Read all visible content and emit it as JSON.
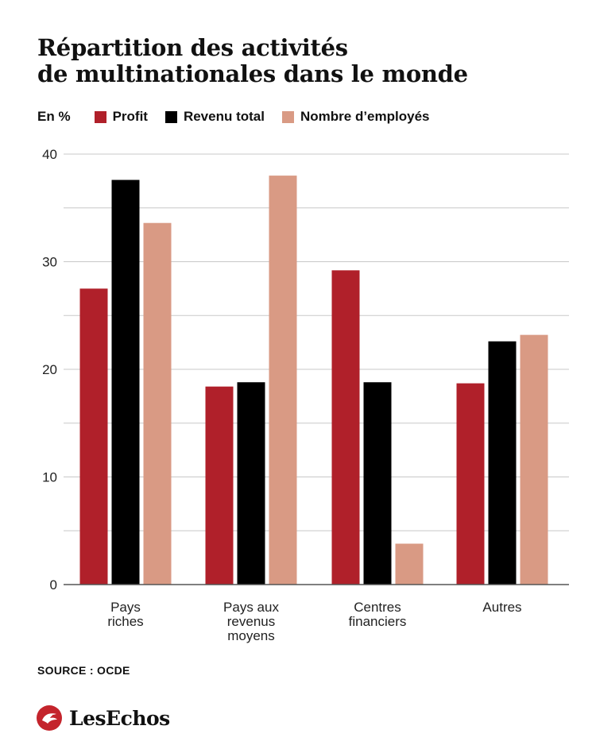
{
  "title_lines": [
    "Répartition des activités",
    "de multinationales dans le monde"
  ],
  "legend": {
    "unit": "En %",
    "items": [
      "Profit",
      "Revenu total",
      "Nombre d’employés"
    ]
  },
  "colors": {
    "Profit": "#b0202a",
    "Revenu total": "#000000",
    "Nombre d’employés": "#d99a84",
    "grid": "#c8c8c8",
    "axis": "#555555"
  },
  "chart_data": {
    "type": "bar",
    "title": "Répartition des activités de multinationales dans le monde",
    "ylabel": "En %",
    "xlabel": "",
    "ylim": [
      0,
      40
    ],
    "yticks": [
      0,
      10,
      20,
      30,
      40
    ],
    "grid": true,
    "legend_position": "top-left",
    "categories": [
      [
        "Pays",
        "riches"
      ],
      [
        "Pays aux",
        "revenus",
        "moyens"
      ],
      [
        "Centres",
        "financiers"
      ],
      [
        "Autres"
      ]
    ],
    "series": [
      {
        "name": "Profit",
        "values": [
          27.5,
          18.4,
          29.2,
          18.7
        ]
      },
      {
        "name": "Revenu total",
        "values": [
          37.6,
          18.8,
          18.8,
          22.6
        ]
      },
      {
        "name": "Nombre d’employés",
        "values": [
          33.6,
          38.0,
          3.8,
          23.2
        ]
      }
    ]
  },
  "source": "SOURCE : OCDE",
  "brand": {
    "name": "LesEchos",
    "logo_icon": "les-echos-logo-icon"
  }
}
